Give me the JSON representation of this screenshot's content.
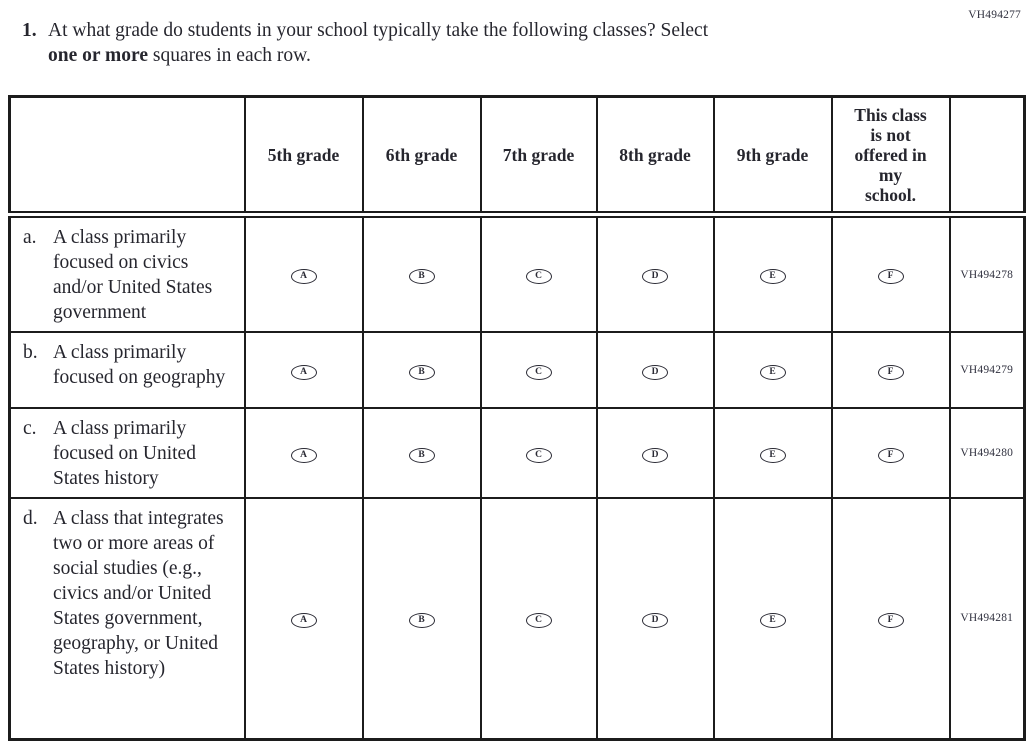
{
  "form_code": "VH494277",
  "question": {
    "number": "1.",
    "line1": "At what grade do students in your school typically take the following classes? Select",
    "line2_bold": "one or more",
    "line2_rest": " squares in each row."
  },
  "table": {
    "columns": [
      "5th grade",
      "6th grade",
      "7th grade",
      "8th grade",
      "9th grade",
      "This class\nis not\noffered in\nmy\nschool."
    ],
    "options": [
      "A",
      "B",
      "C",
      "D",
      "E",
      "F"
    ],
    "rows": [
      {
        "letter": "a.",
        "label": "A class primarily focused on civics and/or United States government",
        "code": "VH494278",
        "row_class": "row-a"
      },
      {
        "letter": "b.",
        "label": "A class primarily focused on geography",
        "code": "VH494279",
        "row_class": "row-b"
      },
      {
        "letter": "c.",
        "label": "A class primarily focused on United States history",
        "code": "VH494280",
        "row_class": "row-c"
      },
      {
        "letter": "d.",
        "label": "A class that integrates two or more areas of social studies (e.g., civics and/or United States government, geography, or United States history)",
        "code": "VH494281",
        "row_class": "row-d"
      }
    ]
  }
}
